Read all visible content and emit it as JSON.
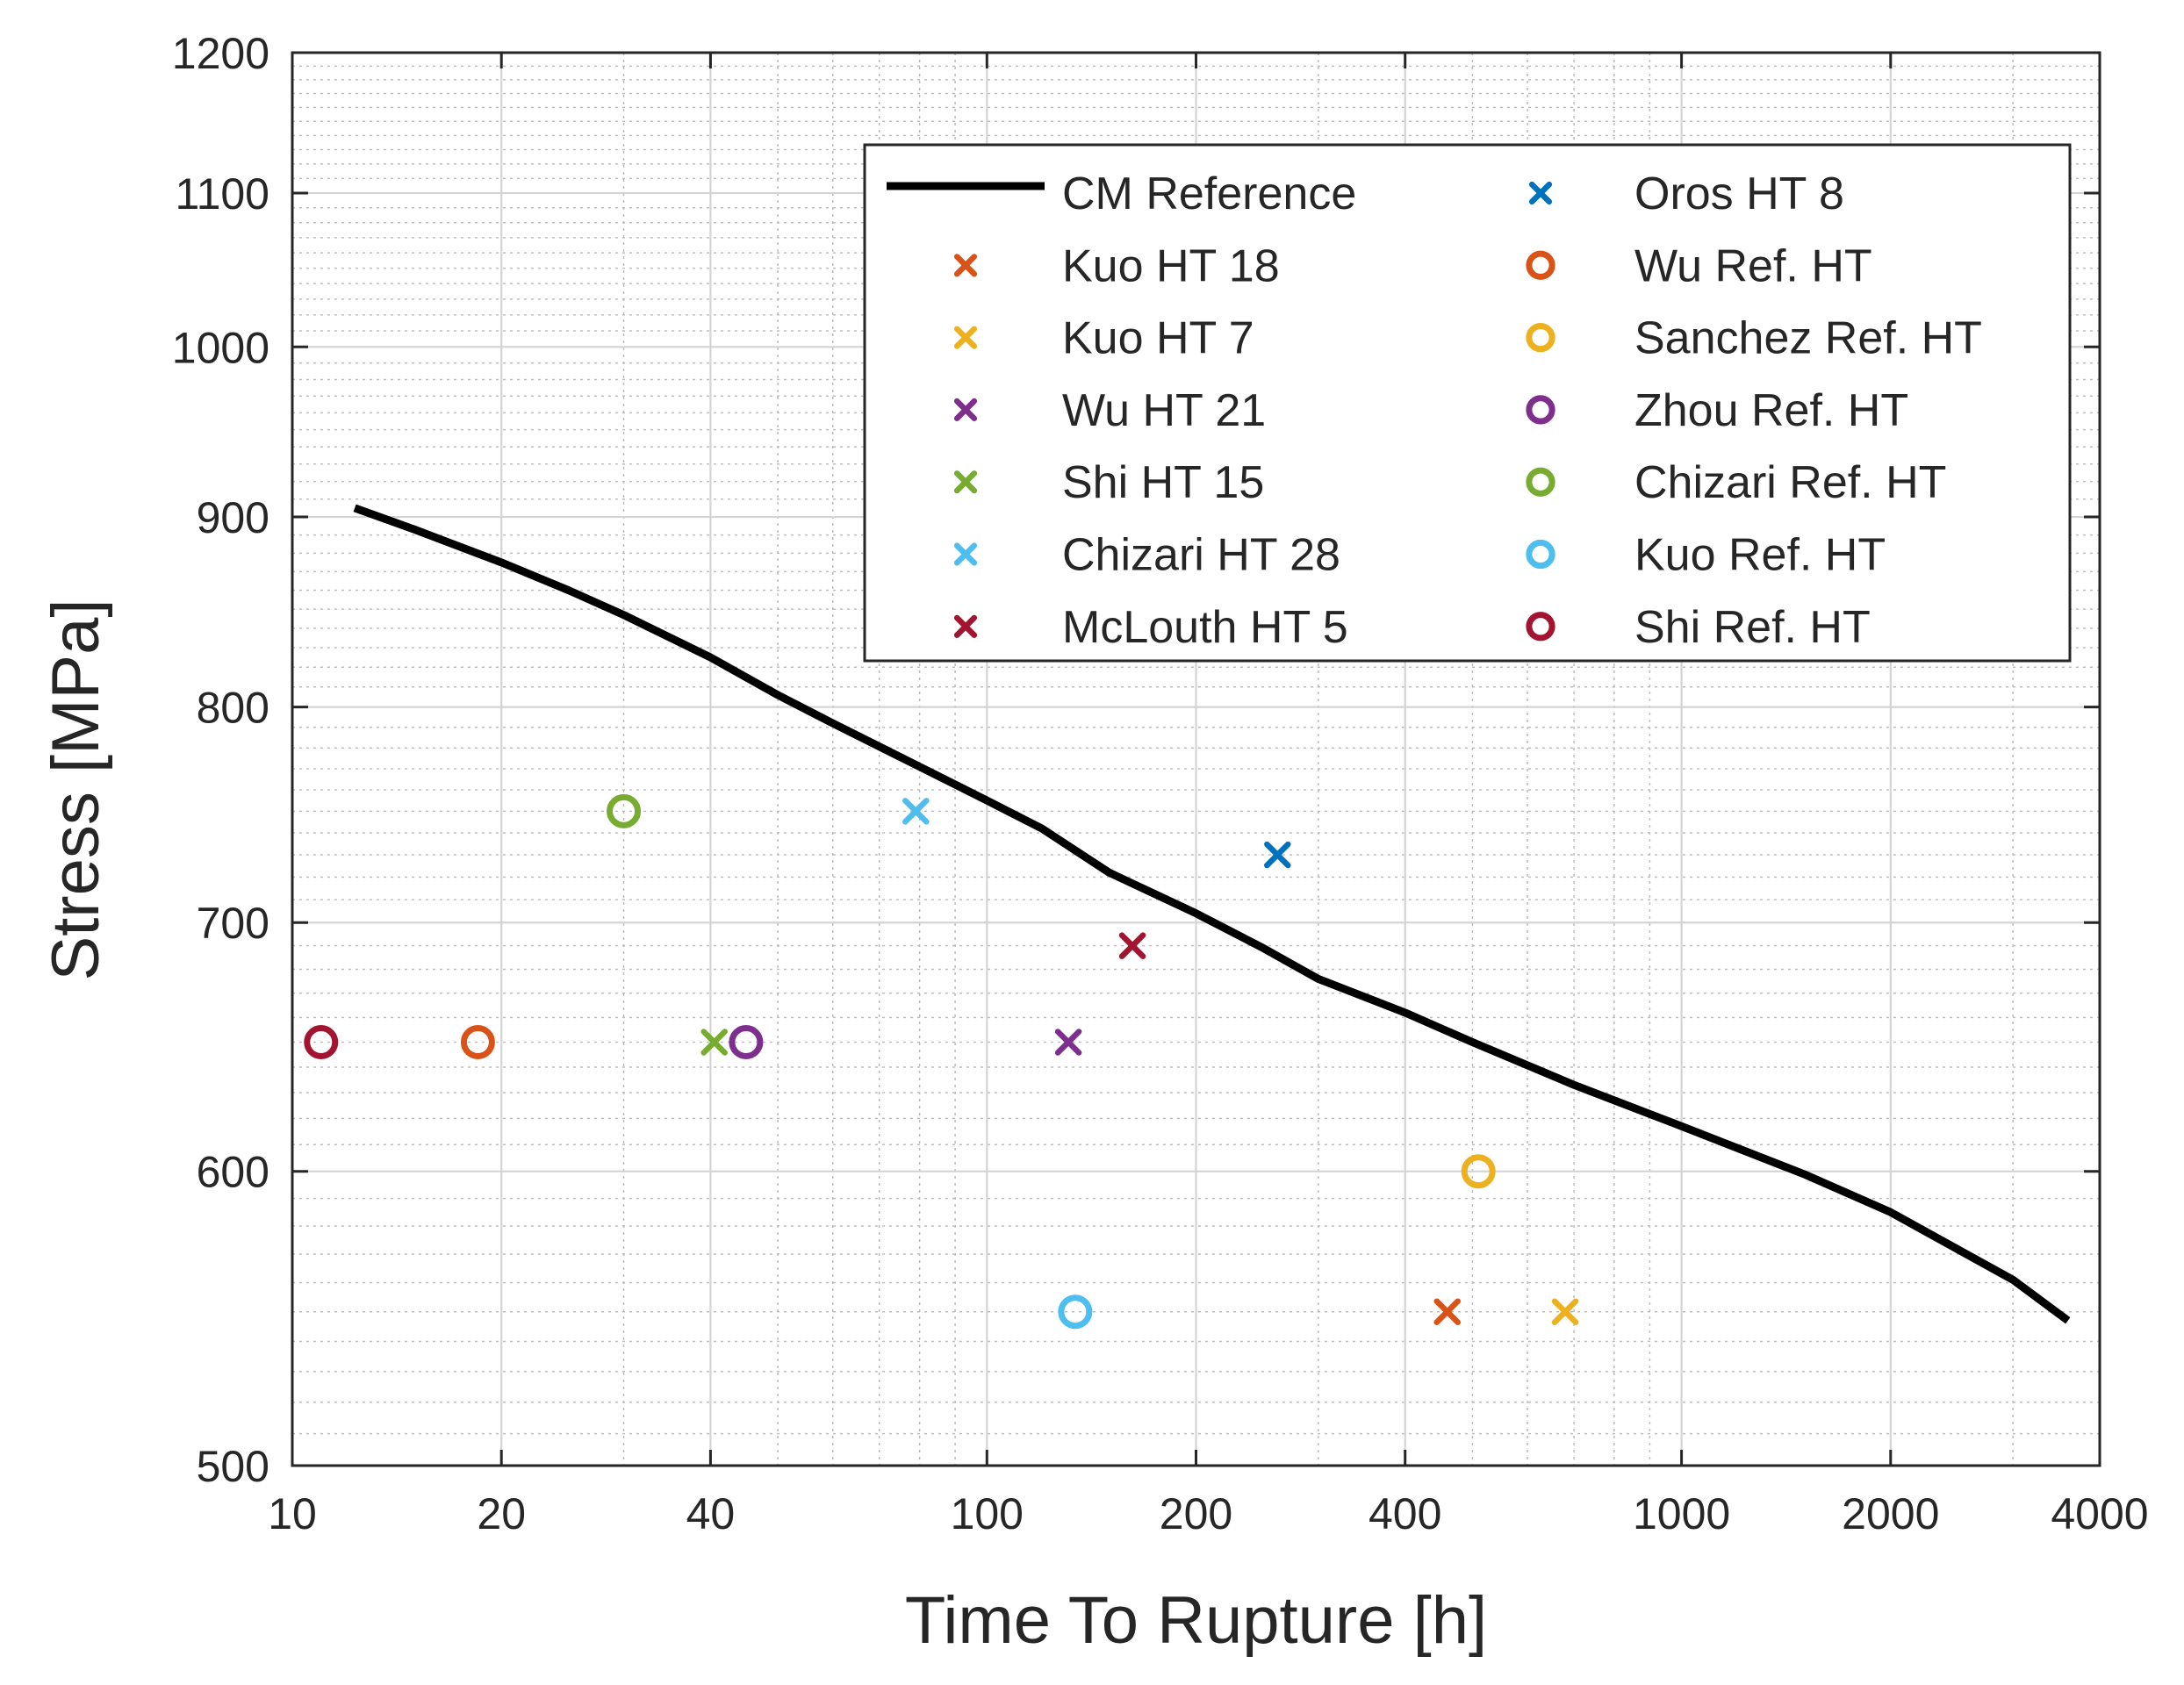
{
  "chart_data": {
    "type": "scatter",
    "xscale": "log",
    "yscale": "log",
    "xlabel": "Time To Rupture [h]",
    "ylabel": "Stress [MPa]",
    "xlim": [
      10,
      4000
    ],
    "ylim": [
      500,
      1200
    ],
    "xticks": [
      10,
      20,
      40,
      100,
      200,
      400,
      1000,
      2000,
      4000
    ],
    "yticks": [
      500,
      600,
      700,
      800,
      900,
      1000,
      1100,
      1200
    ],
    "xtick_labels": [
      "10",
      "20",
      "40",
      "100",
      "200",
      "400",
      "1000",
      "2000",
      "4000"
    ],
    "ytick_labels": [
      "500",
      "600",
      "700",
      "800",
      "900",
      "1000",
      "1100",
      "1200"
    ],
    "grid": true,
    "legend_position": "top-right",
    "reference_curve": {
      "name": "CM Reference",
      "color": "#000000",
      "points": [
        [
          12.3,
          905
        ],
        [
          15,
          893
        ],
        [
          20,
          875
        ],
        [
          25,
          860
        ],
        [
          30,
          847
        ],
        [
          40,
          825
        ],
        [
          50,
          806
        ],
        [
          60,
          792
        ],
        [
          80,
          771
        ],
        [
          100,
          755
        ],
        [
          120,
          742
        ],
        [
          150,
          722
        ],
        [
          200,
          704
        ],
        [
          250,
          689
        ],
        [
          300,
          676
        ],
        [
          400,
          662
        ],
        [
          500,
          650
        ],
        [
          700,
          633
        ],
        [
          1000,
          617
        ],
        [
          1500,
          599
        ],
        [
          2000,
          585
        ],
        [
          3000,
          561
        ],
        [
          3600,
          547
        ]
      ]
    },
    "series": [
      {
        "name": "Kuo HT 18",
        "marker": "x",
        "color": "#D95319",
        "x": 460,
        "y": 550
      },
      {
        "name": "Kuo HT 7",
        "marker": "x",
        "color": "#EDB120",
        "x": 680,
        "y": 550
      },
      {
        "name": "Wu HT 21",
        "marker": "x",
        "color": "#7E2F8E",
        "x": 131,
        "y": 650
      },
      {
        "name": "Shi HT 15",
        "marker": "x",
        "color": "#77AC30",
        "x": 40.5,
        "y": 650
      },
      {
        "name": "Chizari HT 28",
        "marker": "x",
        "color": "#4DBEEE",
        "x": 79,
        "y": 750
      },
      {
        "name": "McLouth HT 5",
        "marker": "x",
        "color": "#A2142F",
        "x": 162,
        "y": 690
      },
      {
        "name": "Oros HT 8",
        "marker": "x",
        "color": "#0072BD",
        "x": 262,
        "y": 730
      },
      {
        "name": "Wu Ref. HT",
        "marker": "o",
        "color": "#D95319",
        "x": 18.5,
        "y": 650
      },
      {
        "name": "Sanchez Ref. HT",
        "marker": "o",
        "color": "#EDB120",
        "x": 510,
        "y": 600
      },
      {
        "name": "Zhou Ref. HT",
        "marker": "o",
        "color": "#7E2F8E",
        "x": 45,
        "y": 650
      },
      {
        "name": "Chizari Ref. HT",
        "marker": "o",
        "color": "#77AC30",
        "x": 30,
        "y": 750
      },
      {
        "name": "Kuo Ref. HT",
        "marker": "o",
        "color": "#4DBEEE",
        "x": 134,
        "y": 550
      },
      {
        "name": "Shi Ref. HT",
        "marker": "o",
        "color": "#A2142F",
        "x": 11,
        "y": 650
      }
    ],
    "legend_order": [
      "CM Reference",
      "Oros HT 8",
      "Kuo HT 18",
      "Wu Ref. HT",
      "Kuo HT 7",
      "Sanchez Ref. HT",
      "Wu HT 21",
      "Zhou Ref. HT",
      "Shi HT 15",
      "Chizari Ref. HT",
      "Chizari HT 28",
      "Kuo Ref. HT",
      "McLouth HT 5",
      "Shi Ref. HT"
    ]
  }
}
